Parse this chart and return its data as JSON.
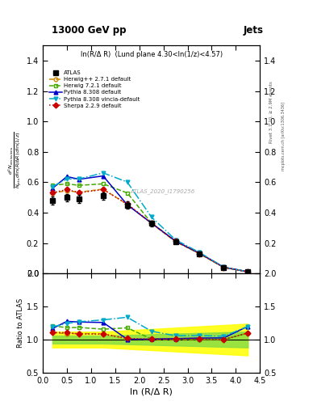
{
  "title_top": "13000 GeV pp",
  "title_right": "Jets",
  "annotation": "ln(R/Δ R)  (Lund plane 4.30<ln(1/z)<4.57)",
  "watermark": "ATLAS_2020_I1790256",
  "rivet_label": "Rivet 3.1.10, ≥ 2.9M events",
  "mcplots_label": "mcplots.cern.ch [arXiv:1306.3436]",
  "ylabel_main": "$\\frac{1}{N_{\\mathrm{jets}}}\\mathrm{d}\\ln(R/\\Delta R)\\,\\mathrm{d}\\ln(1/z)$",
  "ylabel_ratio": "Ratio to ATLAS",
  "xlabel": "ln (R/Δ R)",
  "xlim": [
    0.0,
    4.5
  ],
  "ylim_main": [
    0.0,
    1.5
  ],
  "ylim_ratio": [
    0.5,
    2.0
  ],
  "yticks_main": [
    0.0,
    0.2,
    0.4,
    0.6,
    0.8,
    1.0,
    1.2,
    1.4
  ],
  "yticks_ratio": [
    0.5,
    1.0,
    1.5,
    2.0
  ],
  "x_atlas": [
    0.2,
    0.5,
    0.75,
    1.25,
    1.75,
    2.25,
    2.75,
    3.25,
    3.75,
    4.25
  ],
  "y_atlas": [
    0.48,
    0.5,
    0.49,
    0.51,
    0.45,
    0.33,
    0.21,
    0.13,
    0.04,
    0.01
  ],
  "yerr_atlas": [
    0.025,
    0.025,
    0.025,
    0.025,
    0.025,
    0.018,
    0.012,
    0.009,
    0.004,
    0.002
  ],
  "band_yellow_lo": [
    0.88,
    0.88,
    0.88,
    0.88,
    0.86,
    0.84,
    0.82,
    0.8,
    0.78,
    0.76
  ],
  "band_yellow_hi": [
    1.12,
    1.12,
    1.12,
    1.12,
    1.14,
    1.16,
    1.18,
    1.2,
    1.22,
    1.24
  ],
  "band_green_lo": [
    0.94,
    0.94,
    0.94,
    0.94,
    0.93,
    0.92,
    0.91,
    0.9,
    0.89,
    0.88
  ],
  "band_green_hi": [
    1.06,
    1.06,
    1.06,
    1.06,
    1.07,
    1.08,
    1.09,
    1.1,
    1.11,
    1.12
  ],
  "x_mc": [
    0.2,
    0.5,
    0.75,
    1.25,
    1.75,
    2.25,
    2.75,
    3.25,
    3.75,
    4.25
  ],
  "herwig271": {
    "y": [
      0.53,
      0.545,
      0.535,
      0.555,
      0.455,
      0.33,
      0.21,
      0.13,
      0.04,
      0.011
    ],
    "color": "#cc8800",
    "linestyle": "--",
    "marker": "o",
    "markerfacecolor": "none",
    "label": "Herwig++ 2.7.1 default"
  },
  "herwig721": {
    "y": [
      0.58,
      0.59,
      0.58,
      0.59,
      0.53,
      0.333,
      0.213,
      0.13,
      0.04,
      0.011
    ],
    "color": "#44aa00",
    "linestyle": "--",
    "marker": "s",
    "markerfacecolor": "none",
    "label": "Herwig 7.2.1 default"
  },
  "pythia308": {
    "y": [
      0.56,
      0.638,
      0.62,
      0.642,
      0.452,
      0.332,
      0.213,
      0.133,
      0.041,
      0.012
    ],
    "color": "#0000cc",
    "linestyle": "-",
    "marker": "^",
    "markerfacecolor": "#0000cc",
    "label": "Pythia 8.308 default"
  },
  "pythia308v": {
    "y": [
      0.572,
      0.622,
      0.622,
      0.662,
      0.602,
      0.372,
      0.222,
      0.138,
      0.042,
      0.012
    ],
    "color": "#00aacc",
    "linestyle": "-.",
    "marker": "v",
    "markerfacecolor": "#00aacc",
    "label": "Pythia 8.308 vincia-default"
  },
  "sherpa229": {
    "y": [
      0.532,
      0.552,
      0.532,
      0.552,
      0.458,
      0.332,
      0.213,
      0.131,
      0.04,
      0.011
    ],
    "color": "#cc0000",
    "linestyle": ":",
    "marker": "D",
    "markerfacecolor": "#cc0000",
    "label": "Sherpa 2.2.9 default"
  }
}
